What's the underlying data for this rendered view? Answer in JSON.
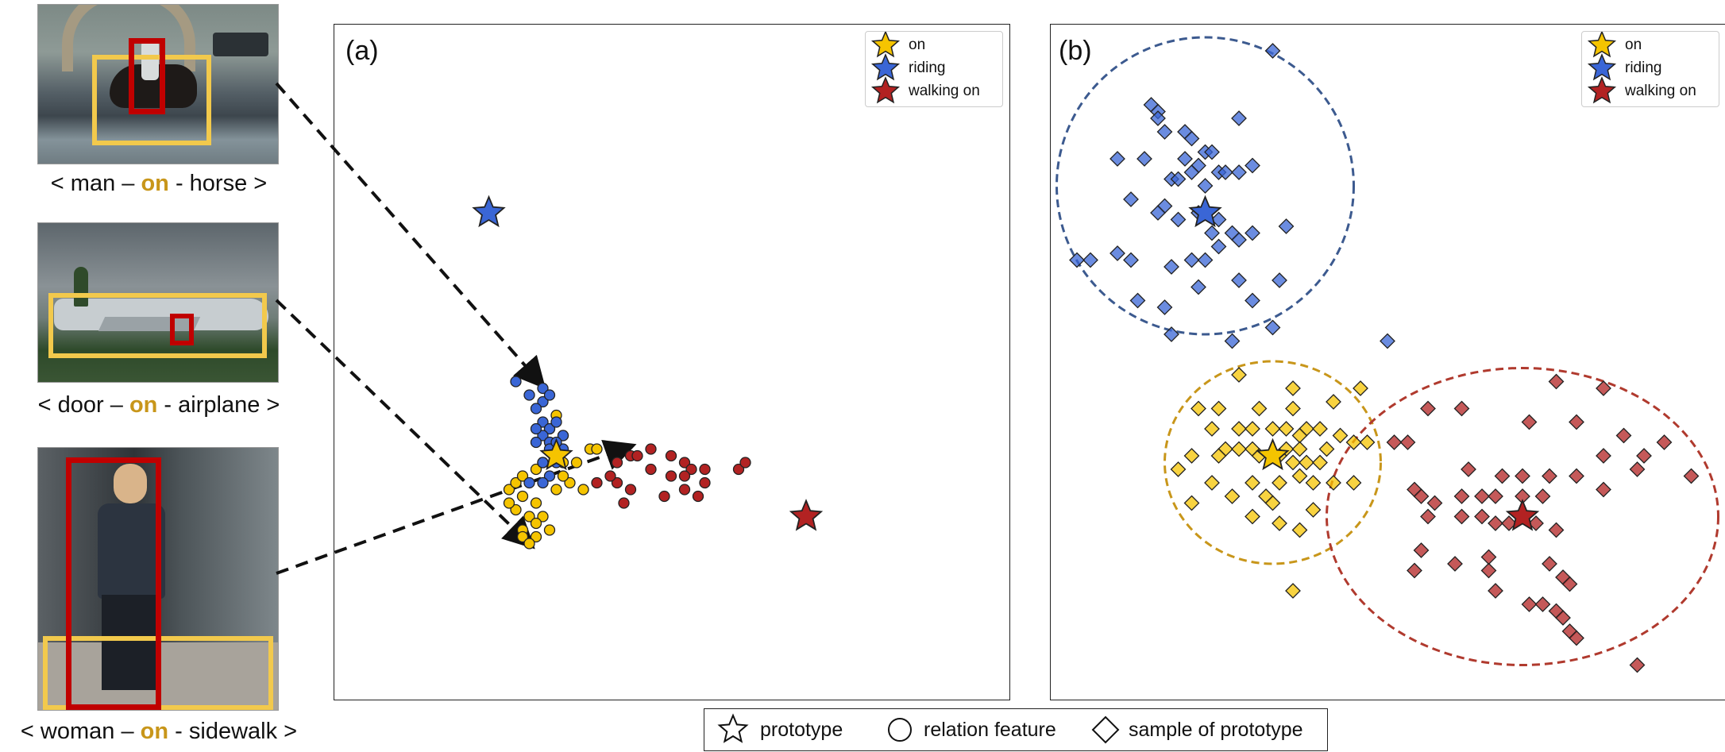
{
  "examples": [
    {
      "subject": "man",
      "relation": "on",
      "object": "horse"
    },
    {
      "subject": "door",
      "relation": "on",
      "object": "airplane"
    },
    {
      "subject": "woman",
      "relation": "on",
      "object": "sidewalk"
    }
  ],
  "colors": {
    "on": "#f5c400",
    "riding": "#3a66d6",
    "walking_on": "#b22222",
    "on_ellipse": "#c8961a",
    "riding_ellipse": "#3c5a8f",
    "walking_on_ellipse": "#b03a2e"
  },
  "bottom_legend": {
    "prototype": "prototype",
    "relation_feature": "relation feature",
    "sample": "sample of prototype"
  },
  "chart_data": [
    {
      "panel": "(a)",
      "type": "scatter",
      "legend": [
        "on",
        "riding",
        "walking on"
      ],
      "legend_position": "top-right",
      "axes_ticks": false,
      "prototypes": {
        "on": [
          0.33,
          0.36
        ],
        "riding": [
          0.23,
          0.72
        ],
        "walking on": [
          0.7,
          0.27
        ]
      },
      "series": [
        {
          "name": "on",
          "marker": "circle",
          "points": [
            [
              0.26,
              0.31
            ],
            [
              0.27,
              0.28
            ],
            [
              0.28,
              0.3
            ],
            [
              0.27,
              0.32
            ],
            [
              0.28,
              0.33
            ],
            [
              0.26,
              0.29
            ],
            [
              0.28,
              0.25
            ],
            [
              0.29,
              0.27
            ],
            [
              0.3,
              0.29
            ],
            [
              0.31,
              0.27
            ],
            [
              0.33,
              0.31
            ],
            [
              0.34,
              0.35
            ],
            [
              0.35,
              0.32
            ],
            [
              0.36,
              0.35
            ],
            [
              0.38,
              0.37
            ],
            [
              0.39,
              0.37
            ],
            [
              0.37,
              0.31
            ],
            [
              0.32,
              0.38
            ],
            [
              0.31,
              0.35
            ],
            [
              0.3,
              0.34
            ],
            [
              0.34,
              0.39
            ],
            [
              0.32,
              0.25
            ],
            [
              0.3,
              0.24
            ],
            [
              0.28,
              0.24
            ],
            [
              0.29,
              0.23
            ],
            [
              0.33,
              0.42
            ],
            [
              0.32,
              0.4
            ],
            [
              0.3,
              0.26
            ],
            [
              0.31,
              0.35
            ],
            [
              0.34,
              0.33
            ]
          ]
        },
        {
          "name": "riding",
          "marker": "circle",
          "points": [
            [
              0.27,
              0.47
            ],
            [
              0.29,
              0.45
            ],
            [
              0.31,
              0.46
            ],
            [
              0.31,
              0.44
            ],
            [
              0.32,
              0.45
            ],
            [
              0.3,
              0.43
            ],
            [
              0.31,
              0.41
            ],
            [
              0.32,
              0.4
            ],
            [
              0.33,
              0.41
            ],
            [
              0.31,
              0.39
            ],
            [
              0.32,
              0.38
            ],
            [
              0.34,
              0.39
            ],
            [
              0.34,
              0.37
            ],
            [
              0.32,
              0.37
            ],
            [
              0.33,
              0.35
            ],
            [
              0.32,
              0.33
            ],
            [
              0.31,
              0.32
            ],
            [
              0.29,
              0.32
            ],
            [
              0.31,
              0.35
            ],
            [
              0.3,
              0.4
            ],
            [
              0.3,
              0.38
            ],
            [
              0.33,
              0.38
            ]
          ]
        },
        {
          "name": "walking on",
          "marker": "circle",
          "points": [
            [
              0.44,
              0.36
            ],
            [
              0.45,
              0.36
            ],
            [
              0.47,
              0.37
            ],
            [
              0.5,
              0.36
            ],
            [
              0.52,
              0.35
            ],
            [
              0.53,
              0.34
            ],
            [
              0.52,
              0.33
            ],
            [
              0.5,
              0.33
            ],
            [
              0.47,
              0.34
            ],
            [
              0.42,
              0.32
            ],
            [
              0.39,
              0.32
            ],
            [
              0.41,
              0.33
            ],
            [
              0.44,
              0.31
            ],
            [
              0.49,
              0.3
            ],
            [
              0.52,
              0.31
            ],
            [
              0.55,
              0.32
            ],
            [
              0.55,
              0.34
            ],
            [
              0.6,
              0.34
            ],
            [
              0.61,
              0.35
            ],
            [
              0.54,
              0.3
            ],
            [
              0.42,
              0.35
            ],
            [
              0.43,
              0.29
            ]
          ]
        }
      ]
    },
    {
      "panel": "(b)",
      "type": "scatter",
      "legend": [
        "on",
        "riding",
        "walking on"
      ],
      "legend_position": "top-right",
      "axes_ticks": false,
      "prototypes": {
        "on": [
          0.33,
          0.36
        ],
        "riding": [
          0.23,
          0.72
        ],
        "walking on": [
          0.7,
          0.27
        ]
      },
      "ellipses": [
        {
          "name": "riding",
          "center": [
            0.23,
            0.76
          ],
          "rx": 0.22,
          "ry": 0.22
        },
        {
          "name": "on",
          "center": [
            0.33,
            0.35
          ],
          "rx": 0.16,
          "ry": 0.15
        },
        {
          "name": "walking on",
          "center": [
            0.7,
            0.27
          ],
          "rx": 0.29,
          "ry": 0.22
        }
      ],
      "series": [
        {
          "name": "riding",
          "marker": "diamond",
          "points": [
            [
              0.33,
              0.96
            ],
            [
              0.15,
              0.88
            ],
            [
              0.16,
              0.87
            ],
            [
              0.16,
              0.86
            ],
            [
              0.28,
              0.86
            ],
            [
              0.17,
              0.84
            ],
            [
              0.2,
              0.84
            ],
            [
              0.21,
              0.83
            ],
            [
              0.23,
              0.81
            ],
            [
              0.24,
              0.81
            ],
            [
              0.1,
              0.8
            ],
            [
              0.14,
              0.8
            ],
            [
              0.2,
              0.8
            ],
            [
              0.22,
              0.79
            ],
            [
              0.25,
              0.78
            ],
            [
              0.3,
              0.79
            ],
            [
              0.18,
              0.77
            ],
            [
              0.19,
              0.77
            ],
            [
              0.21,
              0.78
            ],
            [
              0.23,
              0.76
            ],
            [
              0.26,
              0.78
            ],
            [
              0.28,
              0.78
            ],
            [
              0.12,
              0.74
            ],
            [
              0.17,
              0.73
            ],
            [
              0.16,
              0.72
            ],
            [
              0.19,
              0.71
            ],
            [
              0.22,
              0.72
            ],
            [
              0.24,
              0.69
            ],
            [
              0.25,
              0.71
            ],
            [
              0.27,
              0.69
            ],
            [
              0.28,
              0.68
            ],
            [
              0.3,
              0.69
            ],
            [
              0.35,
              0.7
            ],
            [
              0.06,
              0.65
            ],
            [
              0.1,
              0.66
            ],
            [
              0.12,
              0.65
            ],
            [
              0.18,
              0.64
            ],
            [
              0.21,
              0.65
            ],
            [
              0.23,
              0.65
            ],
            [
              0.25,
              0.67
            ],
            [
              0.28,
              0.62
            ],
            [
              0.34,
              0.62
            ],
            [
              0.04,
              0.65
            ],
            [
              0.13,
              0.59
            ],
            [
              0.17,
              0.58
            ],
            [
              0.22,
              0.61
            ],
            [
              0.3,
              0.59
            ],
            [
              0.33,
              0.55
            ],
            [
              0.18,
              0.54
            ],
            [
              0.27,
              0.53
            ],
            [
              0.5,
              0.53
            ]
          ]
        },
        {
          "name": "on",
          "marker": "diamond",
          "points": [
            [
              0.28,
              0.48
            ],
            [
              0.36,
              0.46
            ],
            [
              0.46,
              0.46
            ],
            [
              0.22,
              0.43
            ],
            [
              0.25,
              0.43
            ],
            [
              0.31,
              0.43
            ],
            [
              0.36,
              0.43
            ],
            [
              0.42,
              0.44
            ],
            [
              0.24,
              0.4
            ],
            [
              0.28,
              0.4
            ],
            [
              0.3,
              0.4
            ],
            [
              0.33,
              0.4
            ],
            [
              0.35,
              0.4
            ],
            [
              0.38,
              0.4
            ],
            [
              0.4,
              0.4
            ],
            [
              0.37,
              0.39
            ],
            [
              0.43,
              0.39
            ],
            [
              0.47,
              0.38
            ],
            [
              0.45,
              0.38
            ],
            [
              0.26,
              0.37
            ],
            [
              0.28,
              0.37
            ],
            [
              0.3,
              0.37
            ],
            [
              0.35,
              0.37
            ],
            [
              0.37,
              0.37
            ],
            [
              0.41,
              0.37
            ],
            [
              0.21,
              0.36
            ],
            [
              0.25,
              0.36
            ],
            [
              0.31,
              0.36
            ],
            [
              0.34,
              0.36
            ],
            [
              0.36,
              0.35
            ],
            [
              0.38,
              0.35
            ],
            [
              0.4,
              0.35
            ],
            [
              0.19,
              0.34
            ],
            [
              0.24,
              0.32
            ],
            [
              0.3,
              0.32
            ],
            [
              0.34,
              0.32
            ],
            [
              0.37,
              0.33
            ],
            [
              0.39,
              0.32
            ],
            [
              0.42,
              0.32
            ],
            [
              0.45,
              0.32
            ],
            [
              0.21,
              0.29
            ],
            [
              0.27,
              0.3
            ],
            [
              0.32,
              0.3
            ],
            [
              0.33,
              0.29
            ],
            [
              0.39,
              0.28
            ],
            [
              0.3,
              0.27
            ],
            [
              0.34,
              0.26
            ],
            [
              0.37,
              0.25
            ],
            [
              0.36,
              0.16
            ]
          ]
        },
        {
          "name": "walking on",
          "marker": "diamond",
          "points": [
            [
              0.75,
              0.47
            ],
            [
              0.82,
              0.46
            ],
            [
              0.56,
              0.43
            ],
            [
              0.61,
              0.43
            ],
            [
              0.71,
              0.41
            ],
            [
              0.78,
              0.41
            ],
            [
              0.85,
              0.39
            ],
            [
              0.51,
              0.38
            ],
            [
              0.53,
              0.38
            ],
            [
              0.82,
              0.36
            ],
            [
              0.88,
              0.36
            ],
            [
              0.91,
              0.38
            ],
            [
              0.62,
              0.34
            ],
            [
              0.67,
              0.33
            ],
            [
              0.7,
              0.33
            ],
            [
              0.74,
              0.33
            ],
            [
              0.78,
              0.33
            ],
            [
              0.87,
              0.34
            ],
            [
              0.95,
              0.33
            ],
            [
              0.54,
              0.31
            ],
            [
              0.55,
              0.3
            ],
            [
              0.57,
              0.29
            ],
            [
              0.61,
              0.3
            ],
            [
              0.64,
              0.3
            ],
            [
              0.66,
              0.3
            ],
            [
              0.7,
              0.3
            ],
            [
              0.73,
              0.3
            ],
            [
              0.82,
              0.31
            ],
            [
              0.56,
              0.27
            ],
            [
              0.61,
              0.27
            ],
            [
              0.64,
              0.27
            ],
            [
              0.66,
              0.26
            ],
            [
              0.68,
              0.26
            ],
            [
              0.72,
              0.26
            ],
            [
              0.75,
              0.25
            ],
            [
              0.55,
              0.22
            ],
            [
              0.6,
              0.2
            ],
            [
              0.65,
              0.19
            ],
            [
              0.74,
              0.2
            ],
            [
              0.76,
              0.18
            ],
            [
              0.77,
              0.17
            ],
            [
              0.66,
              0.16
            ],
            [
              0.71,
              0.14
            ],
            [
              0.73,
              0.14
            ],
            [
              0.75,
              0.13
            ],
            [
              0.76,
              0.12
            ],
            [
              0.54,
              0.19
            ],
            [
              0.77,
              0.1
            ],
            [
              0.78,
              0.09
            ],
            [
              0.65,
              0.21
            ],
            [
              0.87,
              0.05
            ]
          ]
        }
      ]
    }
  ]
}
